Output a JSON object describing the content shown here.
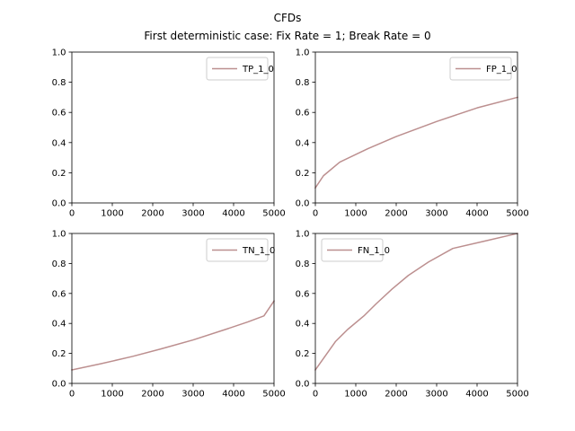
{
  "figure": {
    "title": "CFDs",
    "subtitle": "First deterministic case: Fix Rate = 1; Break Rate = 0"
  },
  "chart_data": [
    {
      "type": "line",
      "legend_location": "upper right",
      "xlim": [
        0,
        5000
      ],
      "ylim": [
        0,
        1.0
      ],
      "xticks": [
        "0",
        "1000",
        "2000",
        "3000",
        "4000",
        "5000"
      ],
      "yticks": [
        "0.0",
        "0.2",
        "0.4",
        "0.6",
        "0.8",
        "1.0"
      ],
      "grid": false,
      "series": [
        {
          "name": "TP_1_0",
          "color": "#bc8f8f",
          "x": [],
          "y": []
        }
      ]
    },
    {
      "type": "line",
      "legend_location": "upper right",
      "xlim": [
        0,
        5000
      ],
      "ylim": [
        0,
        1.0
      ],
      "xticks": [
        "0",
        "1000",
        "2000",
        "3000",
        "4000",
        "5000"
      ],
      "yticks": [
        "0.0",
        "0.2",
        "0.4",
        "0.6",
        "0.8",
        "1.0"
      ],
      "grid": false,
      "series": [
        {
          "name": "FP_1_0",
          "color": "#bc8f8f",
          "x": [
            0,
            200,
            600,
            1300,
            2000,
            3000,
            4000,
            5000
          ],
          "y": [
            0.1,
            0.18,
            0.27,
            0.36,
            0.44,
            0.54,
            0.63,
            0.7
          ]
        }
      ]
    },
    {
      "type": "line",
      "legend_location": "upper right",
      "xlim": [
        0,
        5000
      ],
      "ylim": [
        0,
        1.0
      ],
      "xticks": [
        "0",
        "1000",
        "2000",
        "3000",
        "4000",
        "5000"
      ],
      "yticks": [
        "0.0",
        "0.2",
        "0.4",
        "0.6",
        "0.8",
        "1.0"
      ],
      "grid": false,
      "series": [
        {
          "name": "TN_1_0",
          "color": "#bc8f8f",
          "x": [
            0,
            700,
            1500,
            2200,
            3000,
            3800,
            4350,
            4750,
            5000
          ],
          "y": [
            0.09,
            0.13,
            0.18,
            0.23,
            0.29,
            0.36,
            0.41,
            0.45,
            0.55
          ]
        }
      ]
    },
    {
      "type": "line",
      "legend_location": "upper left",
      "xlim": [
        0,
        5000
      ],
      "ylim": [
        0,
        1.0
      ],
      "xticks": [
        "0",
        "1000",
        "2000",
        "3000",
        "4000",
        "5000"
      ],
      "yticks": [
        "0.0",
        "0.2",
        "0.4",
        "0.6",
        "0.8",
        "1.0"
      ],
      "grid": false,
      "series": [
        {
          "name": "FN_1_0",
          "color": "#bc8f8f",
          "x": [
            0,
            500,
            800,
            1200,
            1500,
            1900,
            2300,
            2800,
            3400,
            4200,
            5000
          ],
          "y": [
            0.09,
            0.28,
            0.36,
            0.45,
            0.53,
            0.63,
            0.72,
            0.81,
            0.9,
            0.95,
            1.0
          ]
        }
      ]
    }
  ]
}
